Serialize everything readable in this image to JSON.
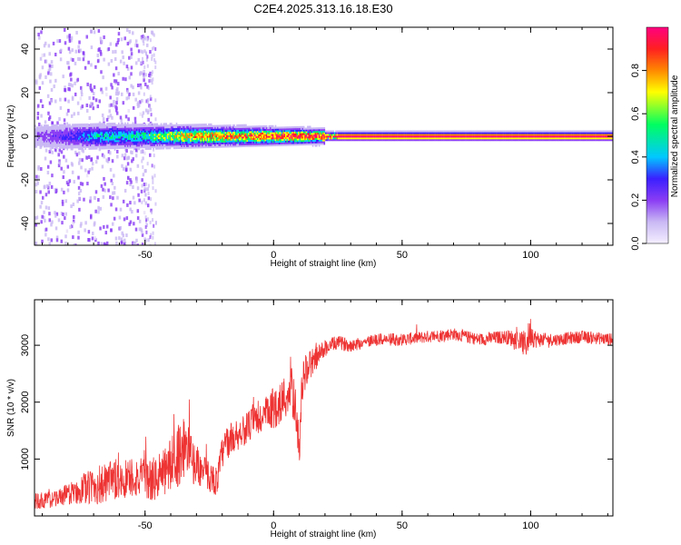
{
  "title": "C2E4.2025.313.16.18.E30",
  "colors": {
    "signal": "#ee3333",
    "spectrum_scale": [
      "#e8e0f8",
      "#c9b8f4",
      "#8a3cf4",
      "#3a20ff",
      "#00c8ff",
      "#00ff60",
      "#ffff00",
      "#ff8800",
      "#ff2020",
      "#ff0080"
    ]
  },
  "chart_data": [
    {
      "type": "heatmap",
      "xlabel": "Height of straight line (km)",
      "ylabel": "Frequency (Hz)",
      "xlim": [
        -93,
        132
      ],
      "ylim": [
        -50,
        50
      ],
      "xticks": [
        -50,
        0,
        50,
        100
      ],
      "xtick_labels": [
        "-50",
        "0",
        "50",
        "100"
      ],
      "yticks": [
        -40,
        -20,
        0,
        20,
        40
      ],
      "ytick_labels": [
        "-40",
        "-20",
        "0",
        "20",
        "40"
      ],
      "colorbar": {
        "label": "Normalized spectral amplitude",
        "range": [
          0,
          1
        ],
        "ticks": [
          0.0,
          0.2,
          0.4,
          0.6,
          0.8
        ],
        "tick_labels": [
          "0.0",
          "0.2",
          "0.4",
          "0.6",
          "0.8"
        ]
      },
      "band_center_hz": 0,
      "band_amplitude_profile": [
        {
          "x": -93,
          "amplitude": 0.15
        },
        {
          "x": -70,
          "amplitude": 0.45
        },
        {
          "x": -50,
          "amplitude": 0.55
        },
        {
          "x": -35,
          "amplitude": 0.75
        },
        {
          "x": -10,
          "amplitude": 0.85
        },
        {
          "x": 0,
          "amplitude": 0.9
        },
        {
          "x": 25,
          "amplitude": 0.95
        },
        {
          "x": 132,
          "amplitude": 0.95
        }
      ]
    },
    {
      "type": "line",
      "xlabel": "Height of straight line (km)",
      "ylabel": "SNR (10 * v/v)",
      "xlim": [
        -93,
        132
      ],
      "ylim": [
        0,
        3800
      ],
      "xticks": [
        -50,
        0,
        50,
        100
      ],
      "xtick_labels": [
        "-50",
        "0",
        "50",
        "100"
      ],
      "yticks": [
        1000,
        2000,
        3000
      ],
      "ytick_labels": [
        "1000",
        "2000",
        "3000"
      ],
      "series": [
        {
          "name": "SNR",
          "x": [
            -93,
            -85,
            -80,
            -75,
            -70,
            -65,
            -60,
            -55,
            -50,
            -45,
            -42,
            -38,
            -35,
            -32,
            -30,
            -28,
            -25,
            -22,
            -20,
            -18,
            -15,
            -12,
            -10,
            -8,
            -5,
            -2,
            0,
            3,
            5,
            7,
            9,
            10,
            11,
            13,
            15,
            18,
            20,
            25,
            30,
            40,
            50,
            60,
            70,
            80,
            90,
            95,
            98,
            100,
            102,
            105,
            110,
            120,
            132
          ],
          "values": [
            250,
            300,
            380,
            450,
            520,
            560,
            620,
            700,
            620,
            650,
            800,
            1000,
            1250,
            1000,
            900,
            800,
            700,
            600,
            1100,
            1300,
            1400,
            1500,
            1550,
            1650,
            1700,
            1800,
            1900,
            2000,
            2100,
            2200,
            1800,
            1100,
            2300,
            2600,
            2700,
            2850,
            2950,
            3050,
            3000,
            3100,
            3100,
            3150,
            3200,
            3100,
            3150,
            3100,
            3000,
            3250,
            3100,
            3100,
            3100,
            3150,
            3100
          ],
          "noise": [
            150,
            150,
            180,
            250,
            350,
            380,
            400,
            380,
            380,
            400,
            450,
            550,
            600,
            450,
            350,
            300,
            280,
            250,
            300,
            300,
            280,
            280,
            280,
            300,
            320,
            350,
            380,
            400,
            400,
            420,
            400,
            300,
            350,
            300,
            250,
            180,
            150,
            120,
            120,
            110,
            110,
            110,
            110,
            110,
            120,
            180,
            250,
            280,
            150,
            120,
            110,
            110,
            110
          ]
        }
      ]
    }
  ]
}
